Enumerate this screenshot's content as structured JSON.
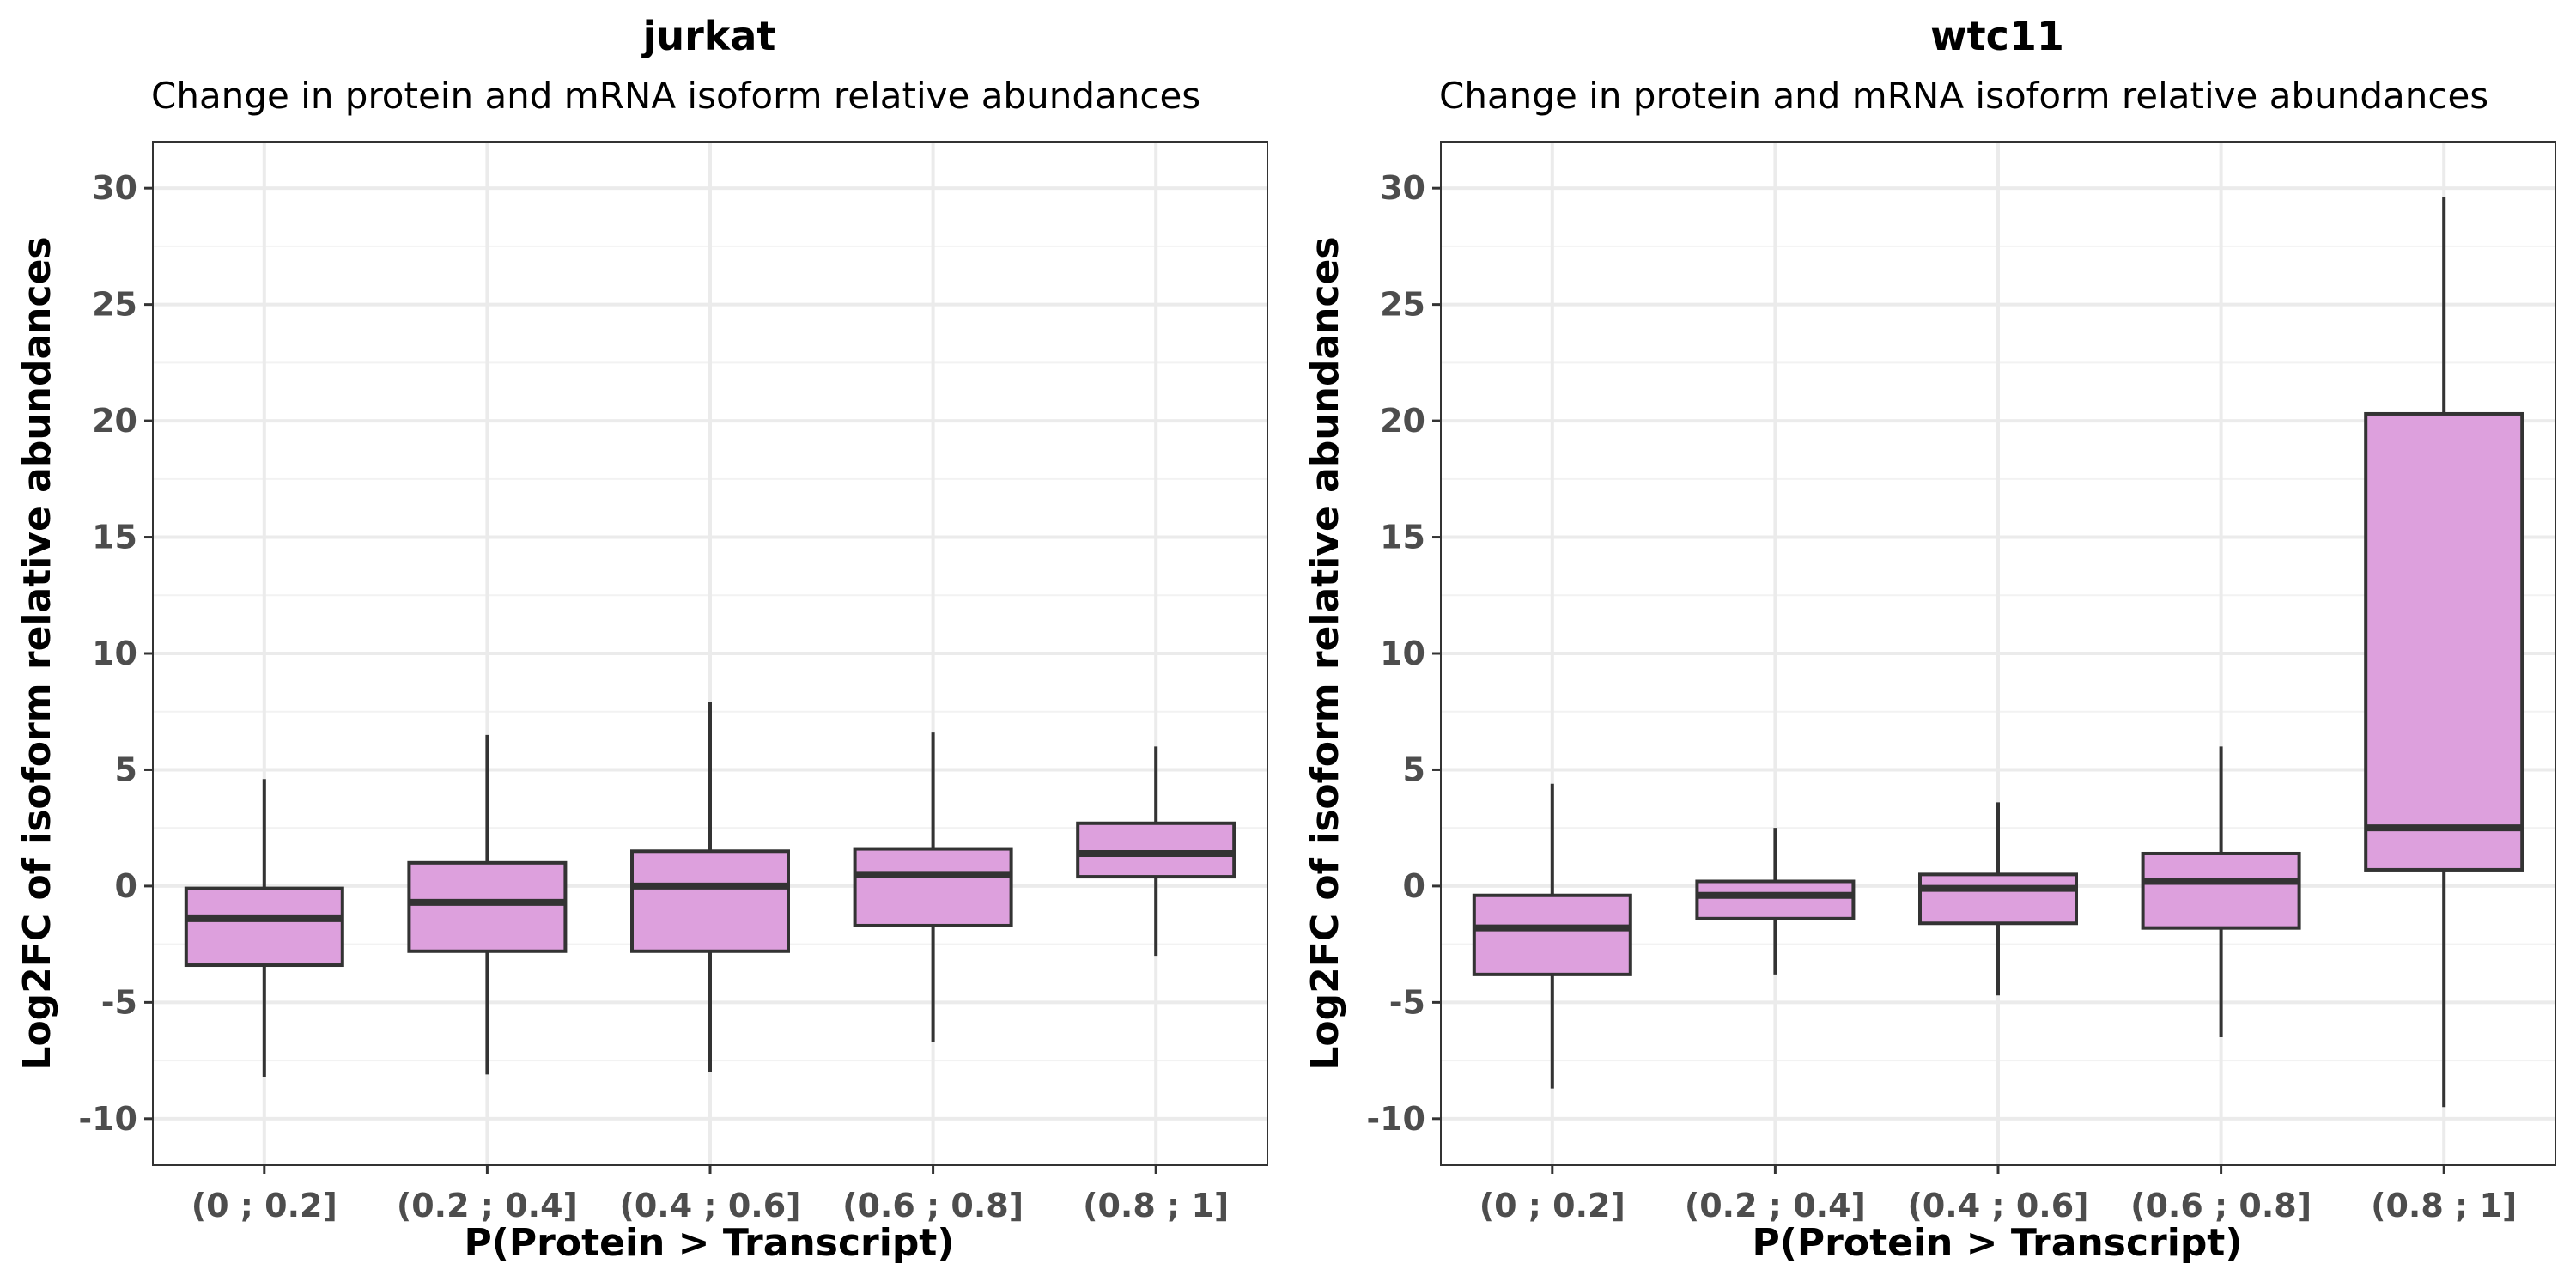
{
  "chart_data": [
    {
      "type": "boxplot",
      "title": "jurkat",
      "subtitle": "Change in protein and mRNA isoform relative abundances",
      "xlabel": "P(Protein > Transcript)",
      "ylabel": "Log2FC of isoform relative abundances",
      "ylim": [
        -12,
        32
      ],
      "yticks": [
        -10,
        -5,
        0,
        5,
        10,
        15,
        20,
        25,
        30
      ],
      "grid": true,
      "box_color": "#dda0dd",
      "categories": [
        "(0 ; 0.2]",
        "(0.2 ; 0.4]",
        "(0.4 ; 0.6]",
        "(0.6 ; 0.8]",
        "(0.8 ; 1]"
      ],
      "boxes": [
        {
          "whisker_low": -8.2,
          "q1": -3.4,
          "median": -1.4,
          "q3": -0.1,
          "whisker_high": 4.6
        },
        {
          "whisker_low": -8.1,
          "q1": -2.8,
          "median": -0.7,
          "q3": 1.0,
          "whisker_high": 6.5
        },
        {
          "whisker_low": -8.0,
          "q1": -2.8,
          "median": 0.0,
          "q3": 1.5,
          "whisker_high": 7.9
        },
        {
          "whisker_low": -6.7,
          "q1": -1.7,
          "median": 0.5,
          "q3": 1.6,
          "whisker_high": 6.6
        },
        {
          "whisker_low": -3.0,
          "q1": 0.4,
          "median": 1.4,
          "q3": 2.7,
          "whisker_high": 6.0
        }
      ]
    },
    {
      "type": "boxplot",
      "title": "wtc11",
      "subtitle": "Change in protein and mRNA isoform relative abundances",
      "xlabel": "P(Protein > Transcript)",
      "ylabel": "Log2FC of isoform relative abundances",
      "ylim": [
        -12,
        32
      ],
      "yticks": [
        -10,
        -5,
        0,
        5,
        10,
        15,
        20,
        25,
        30
      ],
      "grid": true,
      "box_color": "#dda0dd",
      "categories": [
        "(0 ; 0.2]",
        "(0.2 ; 0.4]",
        "(0.4 ; 0.6]",
        "(0.6 ; 0.8]",
        "(0.8 ; 1]"
      ],
      "boxes": [
        {
          "whisker_low": -8.7,
          "q1": -3.8,
          "median": -1.8,
          "q3": -0.4,
          "whisker_high": 4.4
        },
        {
          "whisker_low": -3.8,
          "q1": -1.4,
          "median": -0.4,
          "q3": 0.2,
          "whisker_high": 2.5
        },
        {
          "whisker_low": -4.7,
          "q1": -1.6,
          "median": -0.1,
          "q3": 0.5,
          "whisker_high": 3.6
        },
        {
          "whisker_low": -6.5,
          "q1": -1.8,
          "median": 0.2,
          "q3": 1.4,
          "whisker_high": 6.0
        },
        {
          "whisker_low": -9.5,
          "q1": 0.7,
          "median": 2.5,
          "q3": 20.3,
          "whisker_high": 29.6
        }
      ]
    }
  ]
}
